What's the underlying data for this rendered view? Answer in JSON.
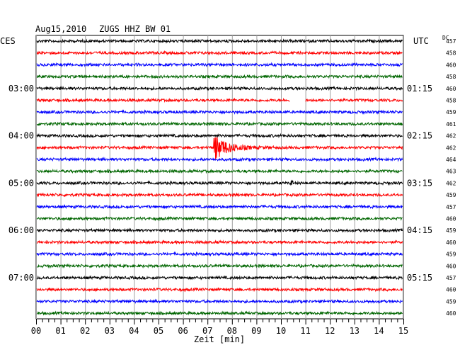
{
  "header": {
    "date": "Aug15,2010",
    "station": "ZUGS HHZ BW 01",
    "left_timezone": "CES",
    "right_timezone": "UTC",
    "dc_label": "DC"
  },
  "chart_data": {
    "type": "line",
    "title": "",
    "xlabel": "Zeit [min]",
    "ylabel": "",
    "xlim": [
      0,
      15
    ],
    "x_ticks": [
      "00",
      "01",
      "02",
      "03",
      "04",
      "05",
      "06",
      "07",
      "08",
      "09",
      "10",
      "11",
      "12",
      "13",
      "14",
      "15"
    ],
    "x_minor_ticks_per_minute": 4,
    "grid": true,
    "trace_interval_min": 15,
    "row_colors": [
      "#000000",
      "#ff0000",
      "#0000ff",
      "#006600"
    ],
    "left_hour_labels": [
      {
        "row": 4,
        "label": "03:00"
      },
      {
        "row": 8,
        "label": "04:00"
      },
      {
        "row": 12,
        "label": "05:00"
      },
      {
        "row": 16,
        "label": "06:00"
      },
      {
        "row": 20,
        "label": "07:00"
      }
    ],
    "right_hour_labels": [
      {
        "row": 4,
        "label": "01:15"
      },
      {
        "row": 8,
        "label": "02:15"
      },
      {
        "row": 12,
        "label": "03:15"
      },
      {
        "row": 16,
        "label": "04:15"
      },
      {
        "row": 20,
        "label": "05:15"
      }
    ],
    "dc_values": [
      "457",
      "458",
      "460",
      "458",
      "460",
      "458",
      "459",
      "461",
      "462",
      "462",
      "464",
      "463",
      "462",
      "459",
      "457",
      "460",
      "459",
      "460",
      "459",
      "460",
      "457",
      "460",
      "459",
      "460"
    ],
    "events": [
      {
        "row": 9,
        "start_min": 7.25,
        "duration_min": 2.8,
        "peak_amplitude": 1.0,
        "label": ""
      }
    ],
    "data_gaps": [
      {
        "row": 5,
        "start_min": 10.35,
        "end_min": 11.0
      }
    ],
    "noise_bursts": [
      {
        "row": 12,
        "at_min": 10.45
      }
    ]
  }
}
